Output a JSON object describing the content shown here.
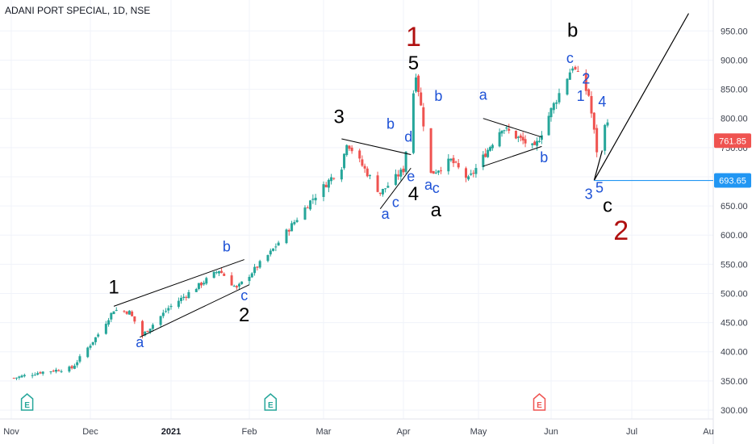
{
  "header": {
    "title": "ADANI PORT SPECIAL, 1D, NSE"
  },
  "colors": {
    "up": "#26a69a",
    "down": "#ef5350",
    "blue_label": "#1e52d6",
    "red_label": "#b01010",
    "last_price_badge": "#ef5350",
    "level_line": "#2196f3"
  },
  "chart_data": {
    "type": "candlestick",
    "title": "ADANI PORT SPECIAL, 1D, NSE",
    "ylim": [
      290,
      1000
    ],
    "y_ticks": [
      "300.00",
      "350.00",
      "400.00",
      "450.00",
      "500.00",
      "550.00",
      "600.00",
      "650.00",
      "700.00",
      "750.00",
      "800.00",
      "850.00",
      "900.00",
      "950.00"
    ],
    "x_ticks": [
      "Nov",
      "Dec",
      "2021",
      "Feb",
      "Mar",
      "Apr",
      "May",
      "Jun",
      "Jul",
      "Au"
    ],
    "last_price": "761.85",
    "level_price": "693.65",
    "close_series": [
      {
        "date": "2020-11-02",
        "close": 355
      },
      {
        "date": "2020-11-12",
        "close": 365
      },
      {
        "date": "2020-11-24",
        "close": 372
      },
      {
        "date": "2020-12-04",
        "close": 430
      },
      {
        "date": "2020-12-10",
        "close": 472
      },
      {
        "date": "2020-12-16",
        "close": 468
      },
      {
        "date": "2020-12-21",
        "close": 428
      },
      {
        "date": "2020-12-31",
        "close": 475
      },
      {
        "date": "2021-01-14",
        "close": 520
      },
      {
        "date": "2021-01-20",
        "close": 540
      },
      {
        "date": "2021-01-27",
        "close": 508
      },
      {
        "date": "2021-02-09",
        "close": 570
      },
      {
        "date": "2021-02-24",
        "close": 658
      },
      {
        "date": "2021-03-08",
        "close": 718
      },
      {
        "date": "2021-03-10",
        "close": 760
      },
      {
        "date": "2021-03-23",
        "close": 672
      },
      {
        "date": "2021-04-01",
        "close": 712
      },
      {
        "date": "2021-04-06",
        "close": 878
      },
      {
        "date": "2021-04-12",
        "close": 705
      },
      {
        "date": "2021-04-20",
        "close": 728
      },
      {
        "date": "2021-04-27",
        "close": 695
      },
      {
        "date": "2021-05-11",
        "close": 785
      },
      {
        "date": "2021-05-25",
        "close": 748
      },
      {
        "date": "2021-06-09",
        "close": 890
      },
      {
        "date": "2021-06-15",
        "close": 840
      },
      {
        "date": "2021-06-18",
        "close": 745
      },
      {
        "date": "2021-06-22",
        "close": 800
      }
    ],
    "projection": [
      {
        "date": "2021-06-17",
        "price": 693.65
      },
      {
        "date": "2021-07-24",
        "price": 980
      }
    ],
    "trendlines": [
      {
        "from": {
          "date": "2020-12-10",
          "price": 478
        },
        "to": {
          "date": "2021-01-30",
          "price": 558
        }
      },
      {
        "from": {
          "date": "2020-12-20",
          "price": 425
        },
        "to": {
          "date": "2021-02-01",
          "price": 515
        }
      },
      {
        "from": {
          "date": "2021-03-08",
          "price": 765
        },
        "to": {
          "date": "2021-04-04",
          "price": 738
        }
      },
      {
        "from": {
          "date": "2021-03-23",
          "price": 645
        },
        "to": {
          "date": "2021-04-04",
          "price": 715
        }
      },
      {
        "from": {
          "date": "2021-05-03",
          "price": 800
        },
        "to": {
          "date": "2021-05-28",
          "price": 768
        }
      },
      {
        "from": {
          "date": "2021-05-03",
          "price": 718
        },
        "to": {
          "date": "2021-05-28",
          "price": 752
        }
      }
    ],
    "wave_labels": [
      {
        "text": "1",
        "date": "2020-12-10",
        "price": 500,
        "style": "black"
      },
      {
        "text": "a",
        "date": "2020-12-20",
        "price": 408,
        "style": "blue"
      },
      {
        "text": "b",
        "date": "2021-01-23",
        "price": 572,
        "style": "blue"
      },
      {
        "text": "c",
        "date": "2021-01-30",
        "price": 488,
        "style": "blue"
      },
      {
        "text": "2",
        "date": "2021-01-30",
        "price": 452,
        "style": "black"
      },
      {
        "text": "3",
        "date": "2021-03-07",
        "price": 792,
        "style": "black"
      },
      {
        "text": "a",
        "date": "2021-03-25",
        "price": 628,
        "style": "blue"
      },
      {
        "text": "b",
        "date": "2021-03-27",
        "price": 782,
        "style": "blue"
      },
      {
        "text": "c",
        "date": "2021-03-29",
        "price": 648,
        "style": "blue"
      },
      {
        "text": "d",
        "date": "2021-04-03",
        "price": 760,
        "style": "blue"
      },
      {
        "text": "e",
        "date": "2021-04-04",
        "price": 692,
        "style": "blue"
      },
      {
        "text": "4",
        "date": "2021-04-05",
        "price": 660,
        "style": "black"
      },
      {
        "text": "5",
        "date": "2021-04-05",
        "price": 884,
        "style": "black"
      },
      {
        "text": "1",
        "date": "2021-04-05",
        "price": 924,
        "style": "red"
      },
      {
        "text": "a",
        "date": "2021-04-11",
        "price": 678,
        "style": "blue"
      },
      {
        "text": "b",
        "date": "2021-04-15",
        "price": 830,
        "style": "blue"
      },
      {
        "text": "c",
        "date": "2021-04-14",
        "price": 672,
        "style": "blue"
      },
      {
        "text": "a",
        "date": "2021-04-14",
        "price": 632,
        "style": "black"
      },
      {
        "text": "a",
        "date": "2021-05-03",
        "price": 832,
        "style": "blue"
      },
      {
        "text": "b",
        "date": "2021-05-29",
        "price": 725,
        "style": "blue"
      },
      {
        "text": "b",
        "date": "2021-06-09",
        "price": 940,
        "style": "black"
      },
      {
        "text": "c",
        "date": "2021-06-08",
        "price": 895,
        "style": "blue"
      },
      {
        "text": "2",
        "date": "2021-06-14",
        "price": 860,
        "style": "blue"
      },
      {
        "text": "1",
        "date": "2021-06-12",
        "price": 830,
        "style": "blue"
      },
      {
        "text": "4",
        "date": "2021-06-20",
        "price": 820,
        "style": "blue"
      },
      {
        "text": "3",
        "date": "2021-06-15",
        "price": 662,
        "style": "blue"
      },
      {
        "text": "5",
        "date": "2021-06-19",
        "price": 673,
        "style": "blue"
      },
      {
        "text": "c",
        "date": "2021-06-22",
        "price": 640,
        "style": "black"
      },
      {
        "text": "2",
        "date": "2021-06-27",
        "price": 592,
        "style": "red"
      }
    ],
    "event_markers": [
      {
        "text": "E",
        "date": "2020-11-07",
        "type": "earnings-past"
      },
      {
        "text": "E",
        "date": "2021-02-09",
        "type": "earnings-past"
      },
      {
        "text": "E",
        "date": "2021-05-27",
        "type": "earnings-upcoming"
      }
    ]
  }
}
